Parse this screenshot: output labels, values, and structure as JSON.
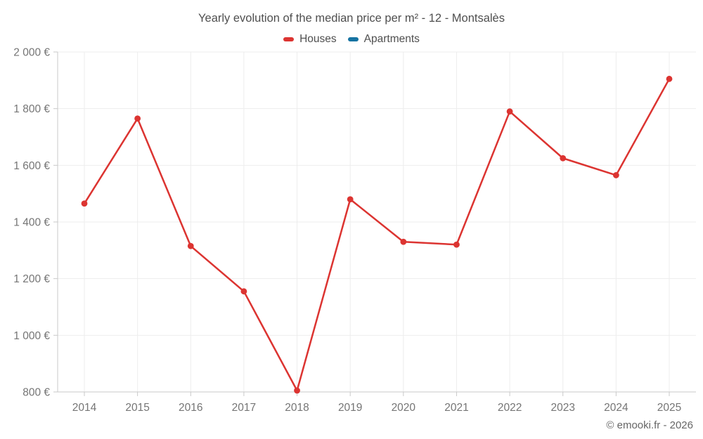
{
  "title": "Yearly evolution of the median price per m² - 12 - Montsalès",
  "legend": {
    "items": [
      {
        "label": "Houses",
        "color": "#dc3431"
      },
      {
        "label": "Apartments",
        "color": "#1673a2"
      }
    ]
  },
  "footer": {
    "copyright": "© emooki.fr - 2026"
  },
  "colors": {
    "houses": "#dc3431",
    "apartments": "#1673a2",
    "grid": "#ededed",
    "axis": "#c9c9c9",
    "tick_label": "#757575"
  },
  "chart_data": {
    "type": "line",
    "title": "Yearly evolution of the median price per m² - 12 - Montsalès",
    "x": [
      2014,
      2015,
      2016,
      2017,
      2018,
      2019,
      2020,
      2021,
      2022,
      2023,
      2024,
      2025
    ],
    "series": [
      {
        "name": "Houses",
        "color": "#dc3431",
        "values": [
          1465,
          1765,
          1315,
          1155,
          805,
          1480,
          1330,
          1320,
          1790,
          1625,
          1565,
          1905
        ]
      },
      {
        "name": "Apartments",
        "color": "#1673a2",
        "values": []
      }
    ],
    "xlabel": "",
    "ylabel": "",
    "ylim": [
      800,
      2000
    ],
    "y_ticks": [
      800,
      1000,
      1200,
      1400,
      1600,
      1800,
      2000
    ],
    "y_tick_suffix": " €",
    "grid": true,
    "legend_position": "top"
  }
}
